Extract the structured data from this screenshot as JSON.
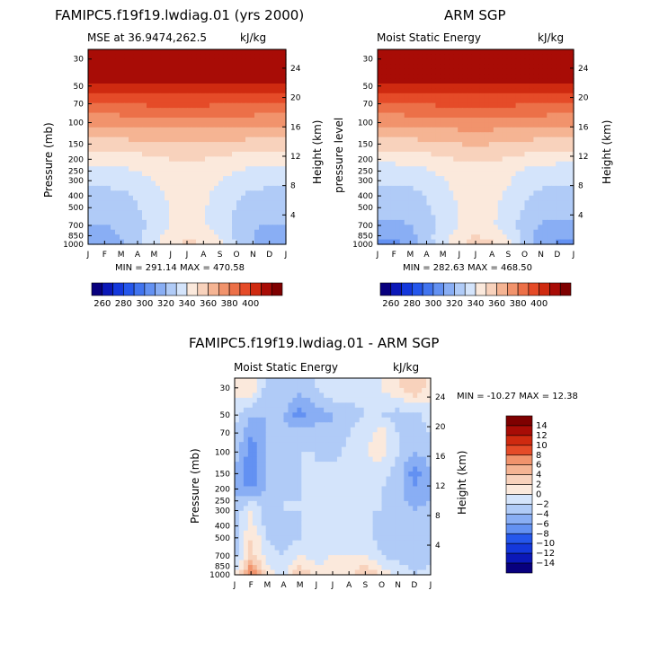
{
  "panels": [
    {
      "title": "FAMIPC5.f19f19.lwdiag.01 (yrs 2000)",
      "subtitle_left": "MSE at 36.9474,262.5",
      "subtitle_right": "kJ/kg",
      "ylabel_left": "Pressure (mb)",
      "ylabel_right": "Height (km)",
      "stats": "MIN = 291.14 MAX = 470.58"
    },
    {
      "title": "ARM SGP",
      "subtitle_left": "Moist Static Energy",
      "subtitle_right": "kJ/kg",
      "ylabel_left": "pressure level",
      "ylabel_right": "Height (km)",
      "stats": "MIN = 282.63 MAX = 468.50"
    },
    {
      "title": "FAMIPC5.f19f19.lwdiag.01 - ARM SGP",
      "subtitle_left": "Moist Static Energy",
      "subtitle_right": "kJ/kg",
      "ylabel_left": "Pressure (mb)",
      "ylabel_right": "Height (km)",
      "stats": "MIN = -10.27 MAX =   12.38"
    }
  ],
  "colors": {
    "mse_scale": [
      "#08007e",
      "#0b18b8",
      "#1438dc",
      "#2557ec",
      "#4174ef",
      "#6391f2",
      "#89aef4",
      "#b0cbf7",
      "#d4e4fb",
      "#fbe9dc",
      "#f8d2bc",
      "#f5b493",
      "#f1936c",
      "#ec7048",
      "#e54b28",
      "#cf2a10",
      "#a80c06",
      "#7e0000"
    ],
    "diff_scale": [
      "#08007e",
      "#0b18b8",
      "#1438dc",
      "#2557ec",
      "#4174ef",
      "#6391f2",
      "#89aef4",
      "#b0cbf7",
      "#d4e4fb",
      "#fbe9dc",
      "#f8d2bc",
      "#f5b493",
      "#f1936c",
      "#ec7048",
      "#e54b28",
      "#cf2a10",
      "#a80c06",
      "#7e0000"
    ]
  },
  "chart_data": [
    {
      "type": "heatmap",
      "title": "FAMIPC5.f19f19.lwdiag.01 (yrs 2000)",
      "subtitle": "MSE at 36.9474,262.5",
      "units": "kJ/kg",
      "xlabel": "",
      "ylabel": "Pressure (mb)",
      "ylabel_right": "Height (km)",
      "x_ticks": [
        "J",
        "F",
        "M",
        "A",
        "M",
        "J",
        "J",
        "A",
        "S",
        "O",
        "N",
        "D",
        "J"
      ],
      "y_ticks_pressure": [
        30,
        50,
        70,
        100,
        150,
        200,
        250,
        300,
        400,
        500,
        700,
        850,
        1000
      ],
      "y_ticks_height_km": [
        4,
        8,
        12,
        16,
        20,
        24
      ],
      "y_scale": "log",
      "ylim": [
        1000,
        25
      ],
      "contour_levels": [
        260,
        270,
        280,
        290,
        300,
        310,
        320,
        330,
        340,
        350,
        360,
        370,
        380,
        390,
        400
      ],
      "colorbar_labels": [
        260,
        280,
        300,
        320,
        340,
        360,
        380,
        400
      ],
      "colorbar": "horizontal-bottom",
      "min": 291.14,
      "max": 470.58,
      "month_values_at_pressure": {
        "p": [
          1000,
          850,
          700,
          500,
          400,
          300,
          250,
          200,
          150,
          100,
          70,
          50,
          30
        ],
        "rows": [
          [
            305,
            303,
            308,
            318,
            325,
            338,
            342,
            340,
            335,
            320,
            310,
            305,
            305
          ],
          [
            308,
            307,
            310,
            318,
            326,
            335,
            338,
            336,
            328,
            318,
            310,
            306,
            308
          ],
          [
            310,
            309,
            312,
            317,
            322,
            330,
            333,
            331,
            325,
            316,
            311,
            309,
            310
          ],
          [
            316,
            315,
            317,
            320,
            324,
            331,
            333,
            331,
            326,
            320,
            317,
            316,
            316
          ],
          [
            318,
            317,
            318,
            321,
            326,
            332,
            334,
            332,
            327,
            321,
            318,
            317,
            318
          ],
          [
            322,
            322,
            323,
            326,
            330,
            334,
            335,
            334,
            330,
            326,
            323,
            322,
            322
          ],
          [
            326,
            326,
            327,
            330,
            333,
            336,
            337,
            336,
            333,
            330,
            327,
            326,
            326
          ],
          [
            333,
            333,
            334,
            336,
            338,
            340,
            341,
            340,
            338,
            336,
            334,
            333,
            333
          ],
          [
            345,
            345,
            346,
            347,
            348,
            349,
            350,
            349,
            348,
            347,
            346,
            345,
            345
          ],
          [
            362,
            362,
            363,
            363,
            364,
            364,
            364,
            364,
            363,
            363,
            363,
            362,
            362
          ],
          [
            380,
            380,
            381,
            381,
            382,
            382,
            382,
            382,
            381,
            381,
            381,
            380,
            380
          ],
          [
            395,
            395,
            396,
            396,
            397,
            397,
            397,
            397,
            396,
            396,
            396,
            395,
            395
          ],
          [
            440,
            440,
            441,
            441,
            442,
            442,
            442,
            442,
            441,
            441,
            441,
            440,
            440
          ]
        ]
      }
    },
    {
      "type": "heatmap",
      "title": "ARM SGP",
      "subtitle": "Moist Static Energy",
      "units": "kJ/kg",
      "xlabel": "",
      "ylabel": "pressure level",
      "ylabel_right": "Height (km)",
      "x_ticks": [
        "J",
        "F",
        "M",
        "A",
        "M",
        "J",
        "J",
        "A",
        "S",
        "O",
        "N",
        "D",
        "J"
      ],
      "y_ticks_pressure": [
        30,
        50,
        70,
        100,
        150,
        200,
        250,
        300,
        400,
        500,
        700,
        850,
        1000
      ],
      "y_ticks_height_km": [
        4,
        8,
        12,
        16,
        20,
        24
      ],
      "y_scale": "log",
      "ylim": [
        1000,
        25
      ],
      "contour_levels": [
        260,
        270,
        280,
        290,
        300,
        310,
        320,
        330,
        340,
        350,
        360,
        370,
        380,
        390,
        400
      ],
      "colorbar_labels": [
        260,
        280,
        300,
        320,
        340,
        360,
        380,
        400
      ],
      "colorbar": "horizontal-bottom",
      "min": 282.63,
      "max": 468.5,
      "month_values_at_pressure": {
        "p": [
          1000,
          850,
          700,
          500,
          400,
          300,
          250,
          200,
          150,
          100,
          70,
          50,
          30
        ],
        "rows": [
          [
            298,
            297,
            303,
            315,
            326,
            338,
            344,
            342,
            333,
            316,
            306,
            299,
            298
          ],
          [
            302,
            301,
            306,
            316,
            327,
            336,
            340,
            337,
            329,
            316,
            306,
            302,
            302
          ],
          [
            308,
            307,
            310,
            316,
            323,
            330,
            333,
            331,
            324,
            315,
            309,
            307,
            308
          ],
          [
            315,
            314,
            316,
            319,
            324,
            331,
            334,
            332,
            327,
            320,
            316,
            315,
            315
          ],
          [
            317,
            316,
            317,
            320,
            326,
            332,
            335,
            333,
            328,
            321,
            318,
            316,
            317
          ],
          [
            321,
            321,
            322,
            325,
            329,
            334,
            336,
            335,
            331,
            326,
            322,
            321,
            321
          ],
          [
            325,
            325,
            326,
            329,
            332,
            336,
            337,
            336,
            333,
            329,
            326,
            325,
            325
          ],
          [
            333,
            333,
            334,
            336,
            338,
            341,
            342,
            341,
            339,
            336,
            334,
            333,
            333
          ],
          [
            346,
            346,
            346,
            347,
            348,
            350,
            351,
            350,
            349,
            347,
            346,
            346,
            346
          ],
          [
            363,
            363,
            363,
            363,
            364,
            365,
            365,
            365,
            364,
            363,
            363,
            363,
            363
          ],
          [
            380,
            380,
            381,
            381,
            382,
            383,
            383,
            383,
            382,
            381,
            381,
            380,
            380
          ],
          [
            394,
            394,
            395,
            396,
            397,
            397,
            397,
            397,
            396,
            396,
            395,
            394,
            394
          ],
          [
            438,
            438,
            439,
            440,
            441,
            441,
            441,
            441,
            440,
            440,
            439,
            438,
            438
          ]
        ]
      }
    },
    {
      "type": "heatmap",
      "title": "FAMIPC5.f19f19.lwdiag.01 - ARM SGP",
      "subtitle": "Moist Static Energy",
      "units": "kJ/kg",
      "xlabel": "",
      "ylabel": "Pressure (mb)",
      "ylabel_right": "Height (km)",
      "x_ticks": [
        "J",
        "F",
        "M",
        "A",
        "M",
        "J",
        "J",
        "A",
        "S",
        "O",
        "N",
        "D",
        "J"
      ],
      "y_ticks_pressure": [
        30,
        50,
        70,
        100,
        150,
        200,
        250,
        300,
        400,
        500,
        700,
        850,
        1000
      ],
      "y_ticks_height_km": [
        4,
        8,
        12,
        16,
        20,
        24
      ],
      "y_scale": "log",
      "ylim": [
        1000,
        25
      ],
      "contour_levels": [
        -16,
        -14,
        -12,
        -10,
        -8,
        -6,
        -4,
        -2,
        0,
        2,
        4,
        6,
        8,
        10,
        12,
        14,
        16
      ],
      "colorbar_labels": [
        14,
        12,
        10,
        8,
        6,
        4,
        2,
        0,
        -2,
        -4,
        -6,
        -8,
        -10,
        -12,
        -14
      ],
      "colorbar": "vertical-right",
      "min": -10.27,
      "max": 12.38,
      "month_values_at_pressure": {
        "p": [
          1000,
          850,
          700,
          500,
          400,
          300,
          250,
          200,
          150,
          100,
          70,
          50,
          30
        ],
        "rows": [
          [
            -1,
            9,
            1,
            -1,
            4,
            1,
            2,
            1,
            5,
            1,
            -1,
            -2,
            -1
          ],
          [
            -2,
            6,
            0,
            -1,
            2,
            0,
            1,
            1,
            2,
            0,
            -1,
            -3,
            -2
          ],
          [
            -3,
            3,
            -1,
            -2,
            0,
            -1,
            0,
            0,
            0,
            -2,
            -3,
            -4,
            -3
          ],
          [
            -3,
            2,
            -2,
            -3,
            -2,
            -1,
            0,
            -1,
            -1,
            -3,
            -4,
            -4,
            -3
          ],
          [
            -3,
            1,
            -3,
            -3,
            -2,
            -1,
            -1,
            -1,
            -1,
            -3,
            -4,
            -4,
            -3
          ],
          [
            -3,
            0,
            -3,
            -2,
            -2,
            -1,
            -1,
            -1,
            -2,
            -2,
            -3,
            -4,
            -3
          ],
          [
            -4,
            -2,
            -3,
            -2,
            -2,
            -1,
            -1,
            -1,
            -1,
            -2,
            -3,
            -5,
            -4
          ],
          [
            -5,
            -6,
            -4,
            -3,
            -2,
            -1,
            -1,
            -1,
            0,
            -2,
            -3,
            -6,
            -5
          ],
          [
            -4,
            -8,
            -4,
            -3,
            -2,
            -2,
            -1,
            -1,
            -1,
            -1,
            -3,
            -7,
            -4
          ],
          [
            -3,
            -7,
            -4,
            -2,
            -2,
            -2,
            -3,
            -1,
            0,
            1,
            -2,
            -4,
            -3
          ],
          [
            -2,
            -6,
            -4,
            -3,
            -3,
            -3,
            -4,
            -2,
            -1,
            1,
            -2,
            -3,
            -2
          ],
          [
            -1,
            -4,
            -4,
            -4,
            -7,
            -5,
            -4,
            -3,
            -2,
            -2,
            -3,
            -3,
            -1
          ],
          [
            1,
            2,
            -3,
            -2,
            -3,
            -2,
            0,
            -1,
            -1,
            0,
            2,
            4,
            1
          ]
        ]
      }
    }
  ]
}
